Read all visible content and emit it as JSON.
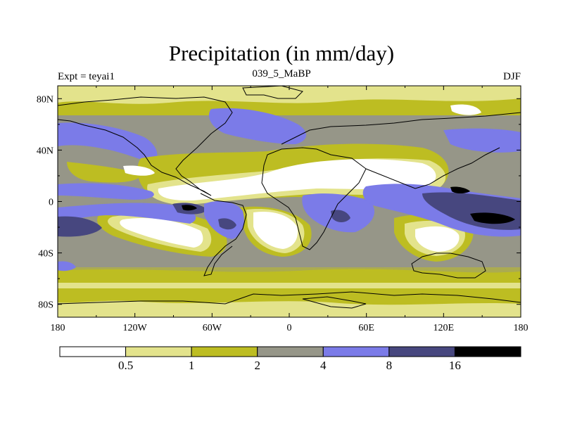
{
  "title": "Precipitation (in mm/day)",
  "subtitle_left": "Expt = teyai1",
  "subtitle_center": "039_5_MaBP",
  "subtitle_right": "DJF",
  "lat_ticks": [
    "80N",
    "40N",
    "0",
    "40S",
    "80S"
  ],
  "lat_values": [
    80,
    40,
    0,
    -40,
    -80
  ],
  "lon_ticks": [
    "180",
    "120W",
    "60W",
    "0",
    "60E",
    "120E",
    "180"
  ],
  "lon_values": [
    -180,
    -120,
    -60,
    0,
    60,
    120,
    180
  ],
  "colorbar": {
    "labels": [
      "0.5",
      "1",
      "2",
      "4",
      "8",
      "16"
    ],
    "colors": [
      "#ffffff",
      "#e3e38c",
      "#bdbd22",
      "#969688",
      "#7b7be8",
      "#47477f",
      "#000000"
    ]
  },
  "chart_data": {
    "type": "heatmap",
    "title": "Precipitation (in mm/day)",
    "xlim": [
      -180,
      180
    ],
    "ylim": [
      -90,
      90
    ],
    "levels": [
      0.5,
      1,
      2,
      4,
      8,
      16
    ],
    "grid": false
  }
}
